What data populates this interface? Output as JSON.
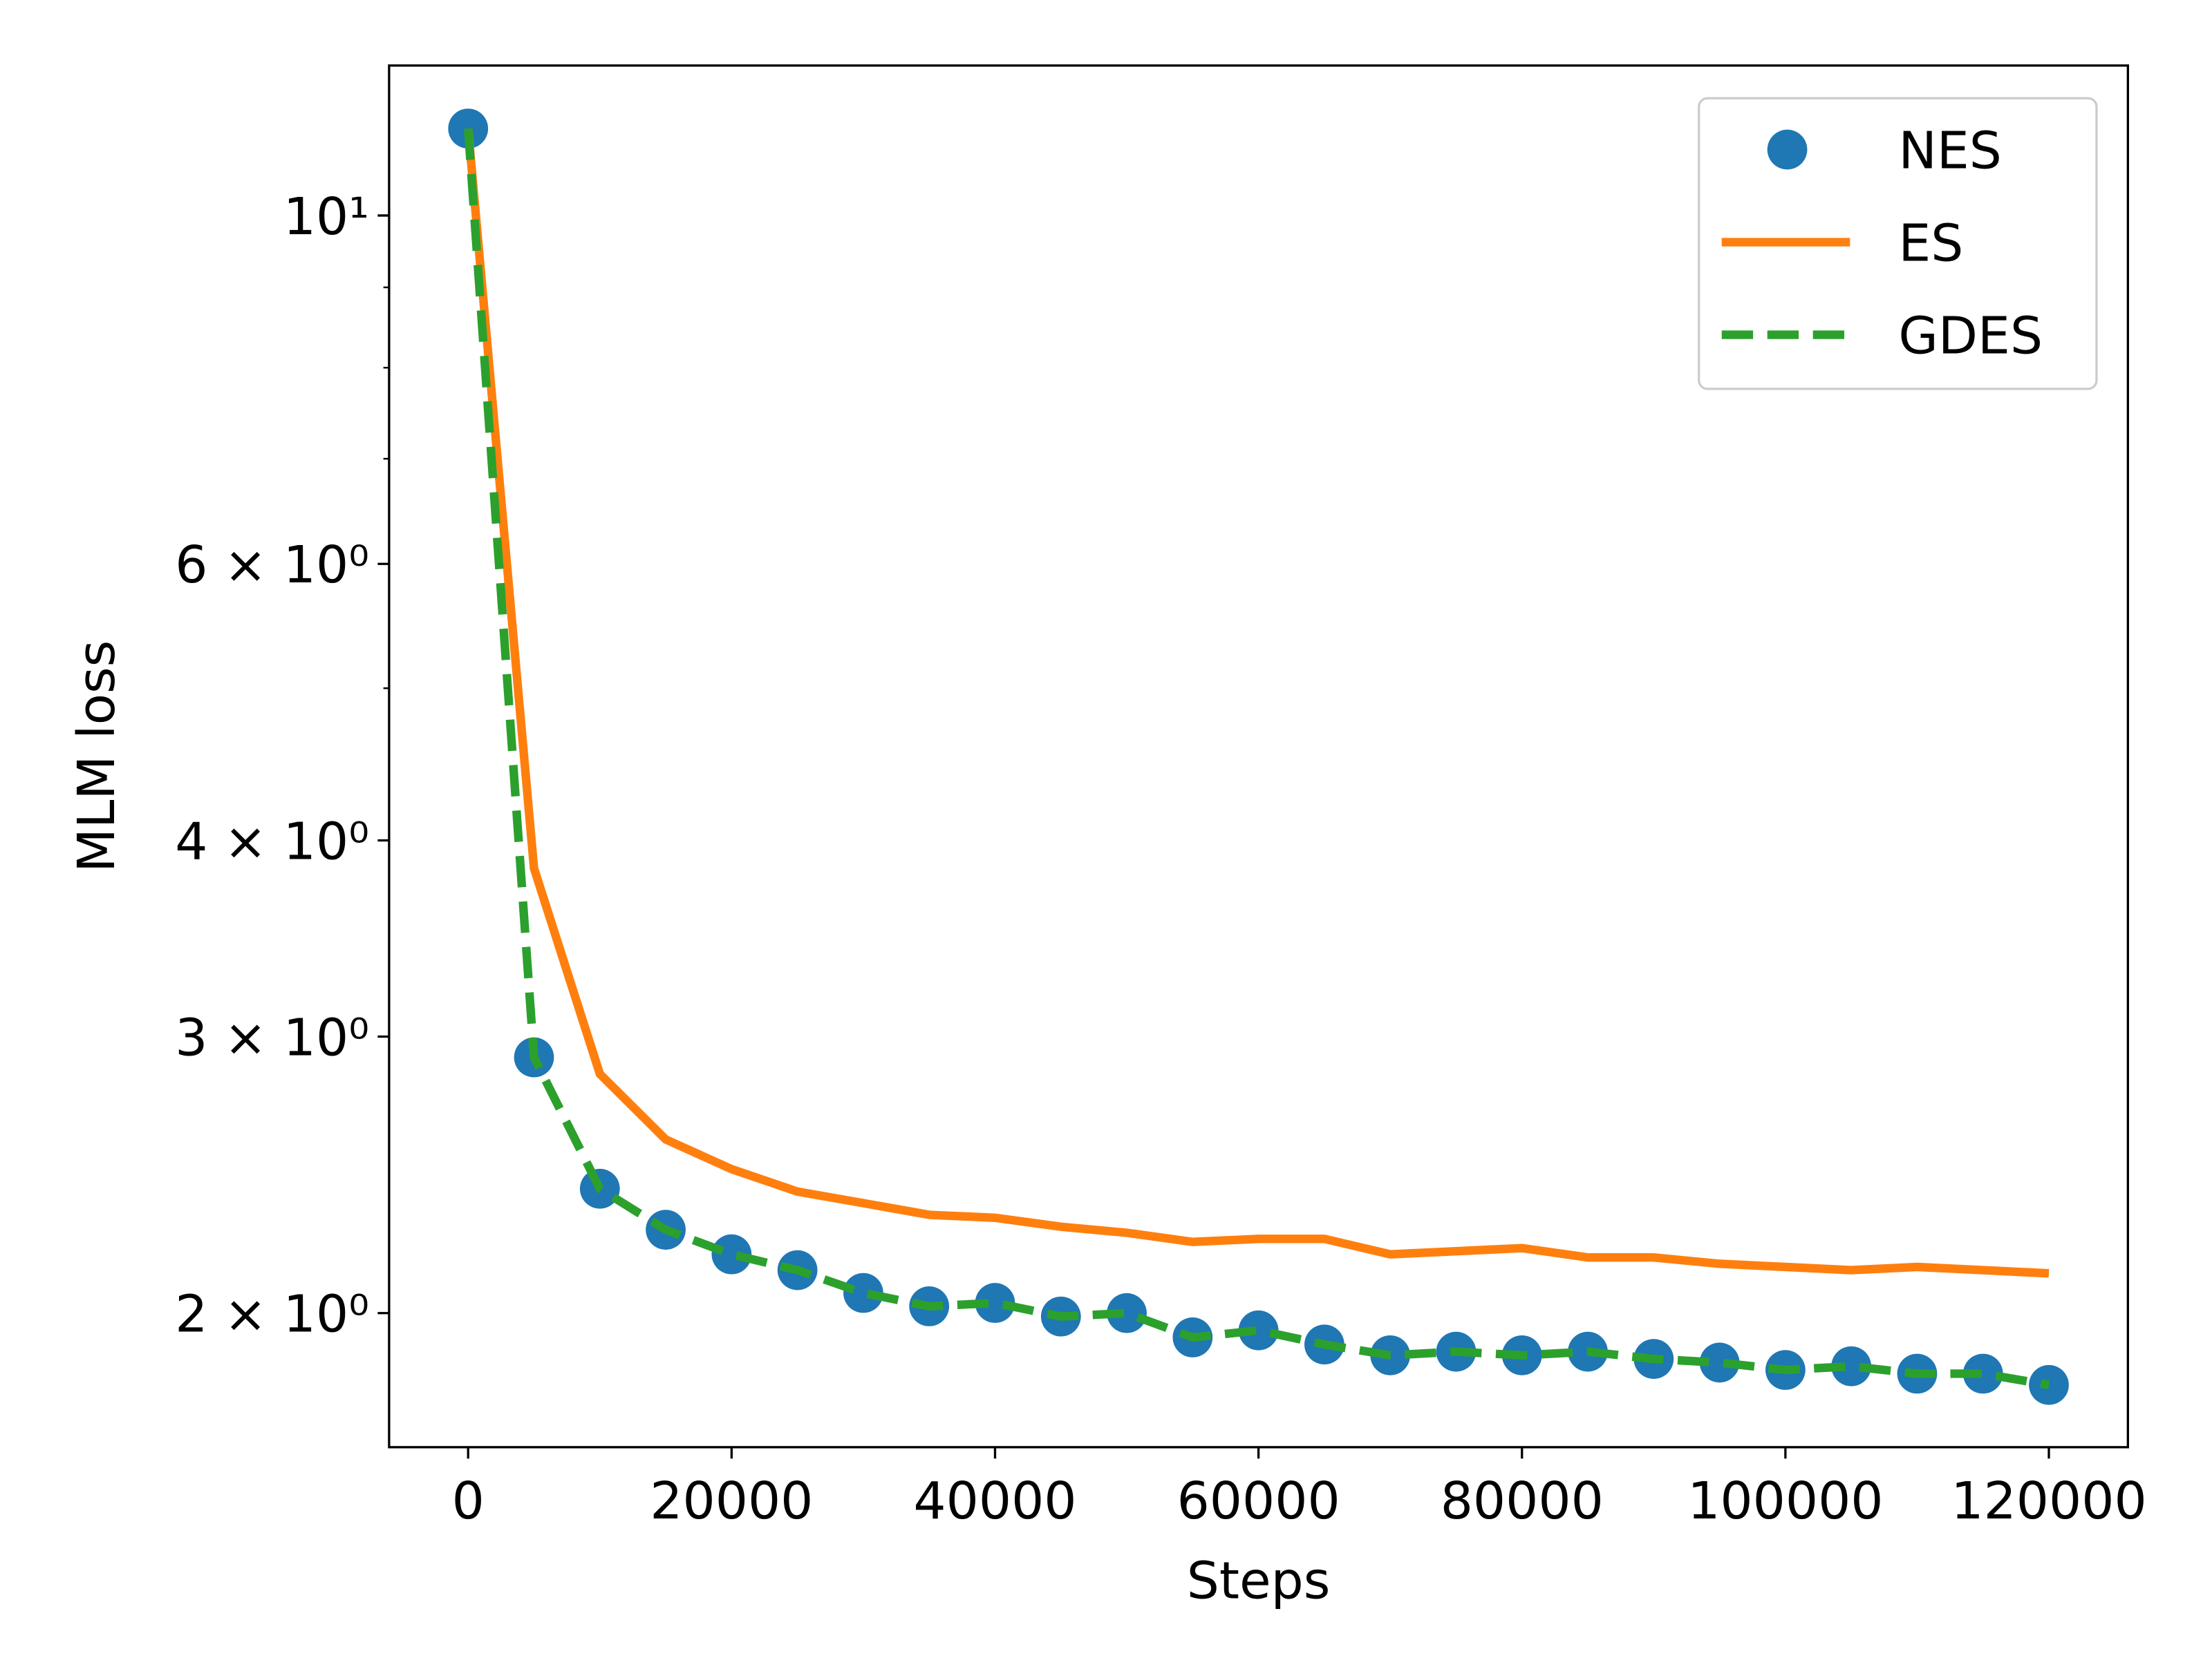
{
  "chart_data": {
    "type": "line",
    "x_label": "Steps",
    "y_label": "MLM loss",
    "y_scale": "log",
    "x": [
      0,
      5000,
      10000,
      15000,
      20000,
      25000,
      30000,
      35000,
      40000,
      45000,
      50000,
      55000,
      60000,
      65000,
      70000,
      75000,
      80000,
      85000,
      90000,
      95000,
      100000,
      105000,
      110000,
      115000,
      120000
    ],
    "series": [
      {
        "name": "NES",
        "color": "#1f77b4",
        "style": "markers",
        "values": [
          11.36,
          2.91,
          2.4,
          2.26,
          2.18,
          2.13,
          2.06,
          2.02,
          2.03,
          1.99,
          2.0,
          1.93,
          1.95,
          1.91,
          1.88,
          1.89,
          1.88,
          1.89,
          1.87,
          1.86,
          1.84,
          1.85,
          1.83,
          1.83,
          1.8
        ]
      },
      {
        "name": "ES",
        "color": "#ff7f0e",
        "style": "solid",
        "values": [
          11.36,
          3.84,
          2.84,
          2.58,
          2.47,
          2.39,
          2.35,
          2.31,
          2.3,
          2.27,
          2.25,
          2.22,
          2.23,
          2.23,
          2.18,
          2.19,
          2.2,
          2.17,
          2.17,
          2.15,
          2.14,
          2.13,
          2.14,
          2.13,
          2.12
        ]
      },
      {
        "name": "GDES",
        "color": "#2ca02c",
        "style": "dashed",
        "values": [
          11.36,
          2.91,
          2.4,
          2.26,
          2.18,
          2.13,
          2.06,
          2.02,
          2.03,
          1.99,
          2.0,
          1.93,
          1.95,
          1.91,
          1.88,
          1.89,
          1.88,
          1.89,
          1.87,
          1.86,
          1.84,
          1.85,
          1.83,
          1.83,
          1.8
        ]
      }
    ],
    "xlim": [
      -6000,
      126000
    ],
    "xticks": [
      0,
      20000,
      40000,
      60000,
      80000,
      100000,
      120000
    ],
    "ylim": [
      1.643,
      12.46
    ],
    "yticks": [
      {
        "value": 2,
        "label": "2 × 10⁰"
      },
      {
        "value": 3,
        "label": "3 × 10⁰"
      },
      {
        "value": 4,
        "label": "4 × 10⁰"
      },
      {
        "value": 6,
        "label": "6 × 10⁰"
      },
      {
        "value": 10,
        "label": "10¹"
      }
    ],
    "yticks_minor": [
      5,
      7,
      8,
      9
    ],
    "legend": "upper right",
    "grid": false
  }
}
